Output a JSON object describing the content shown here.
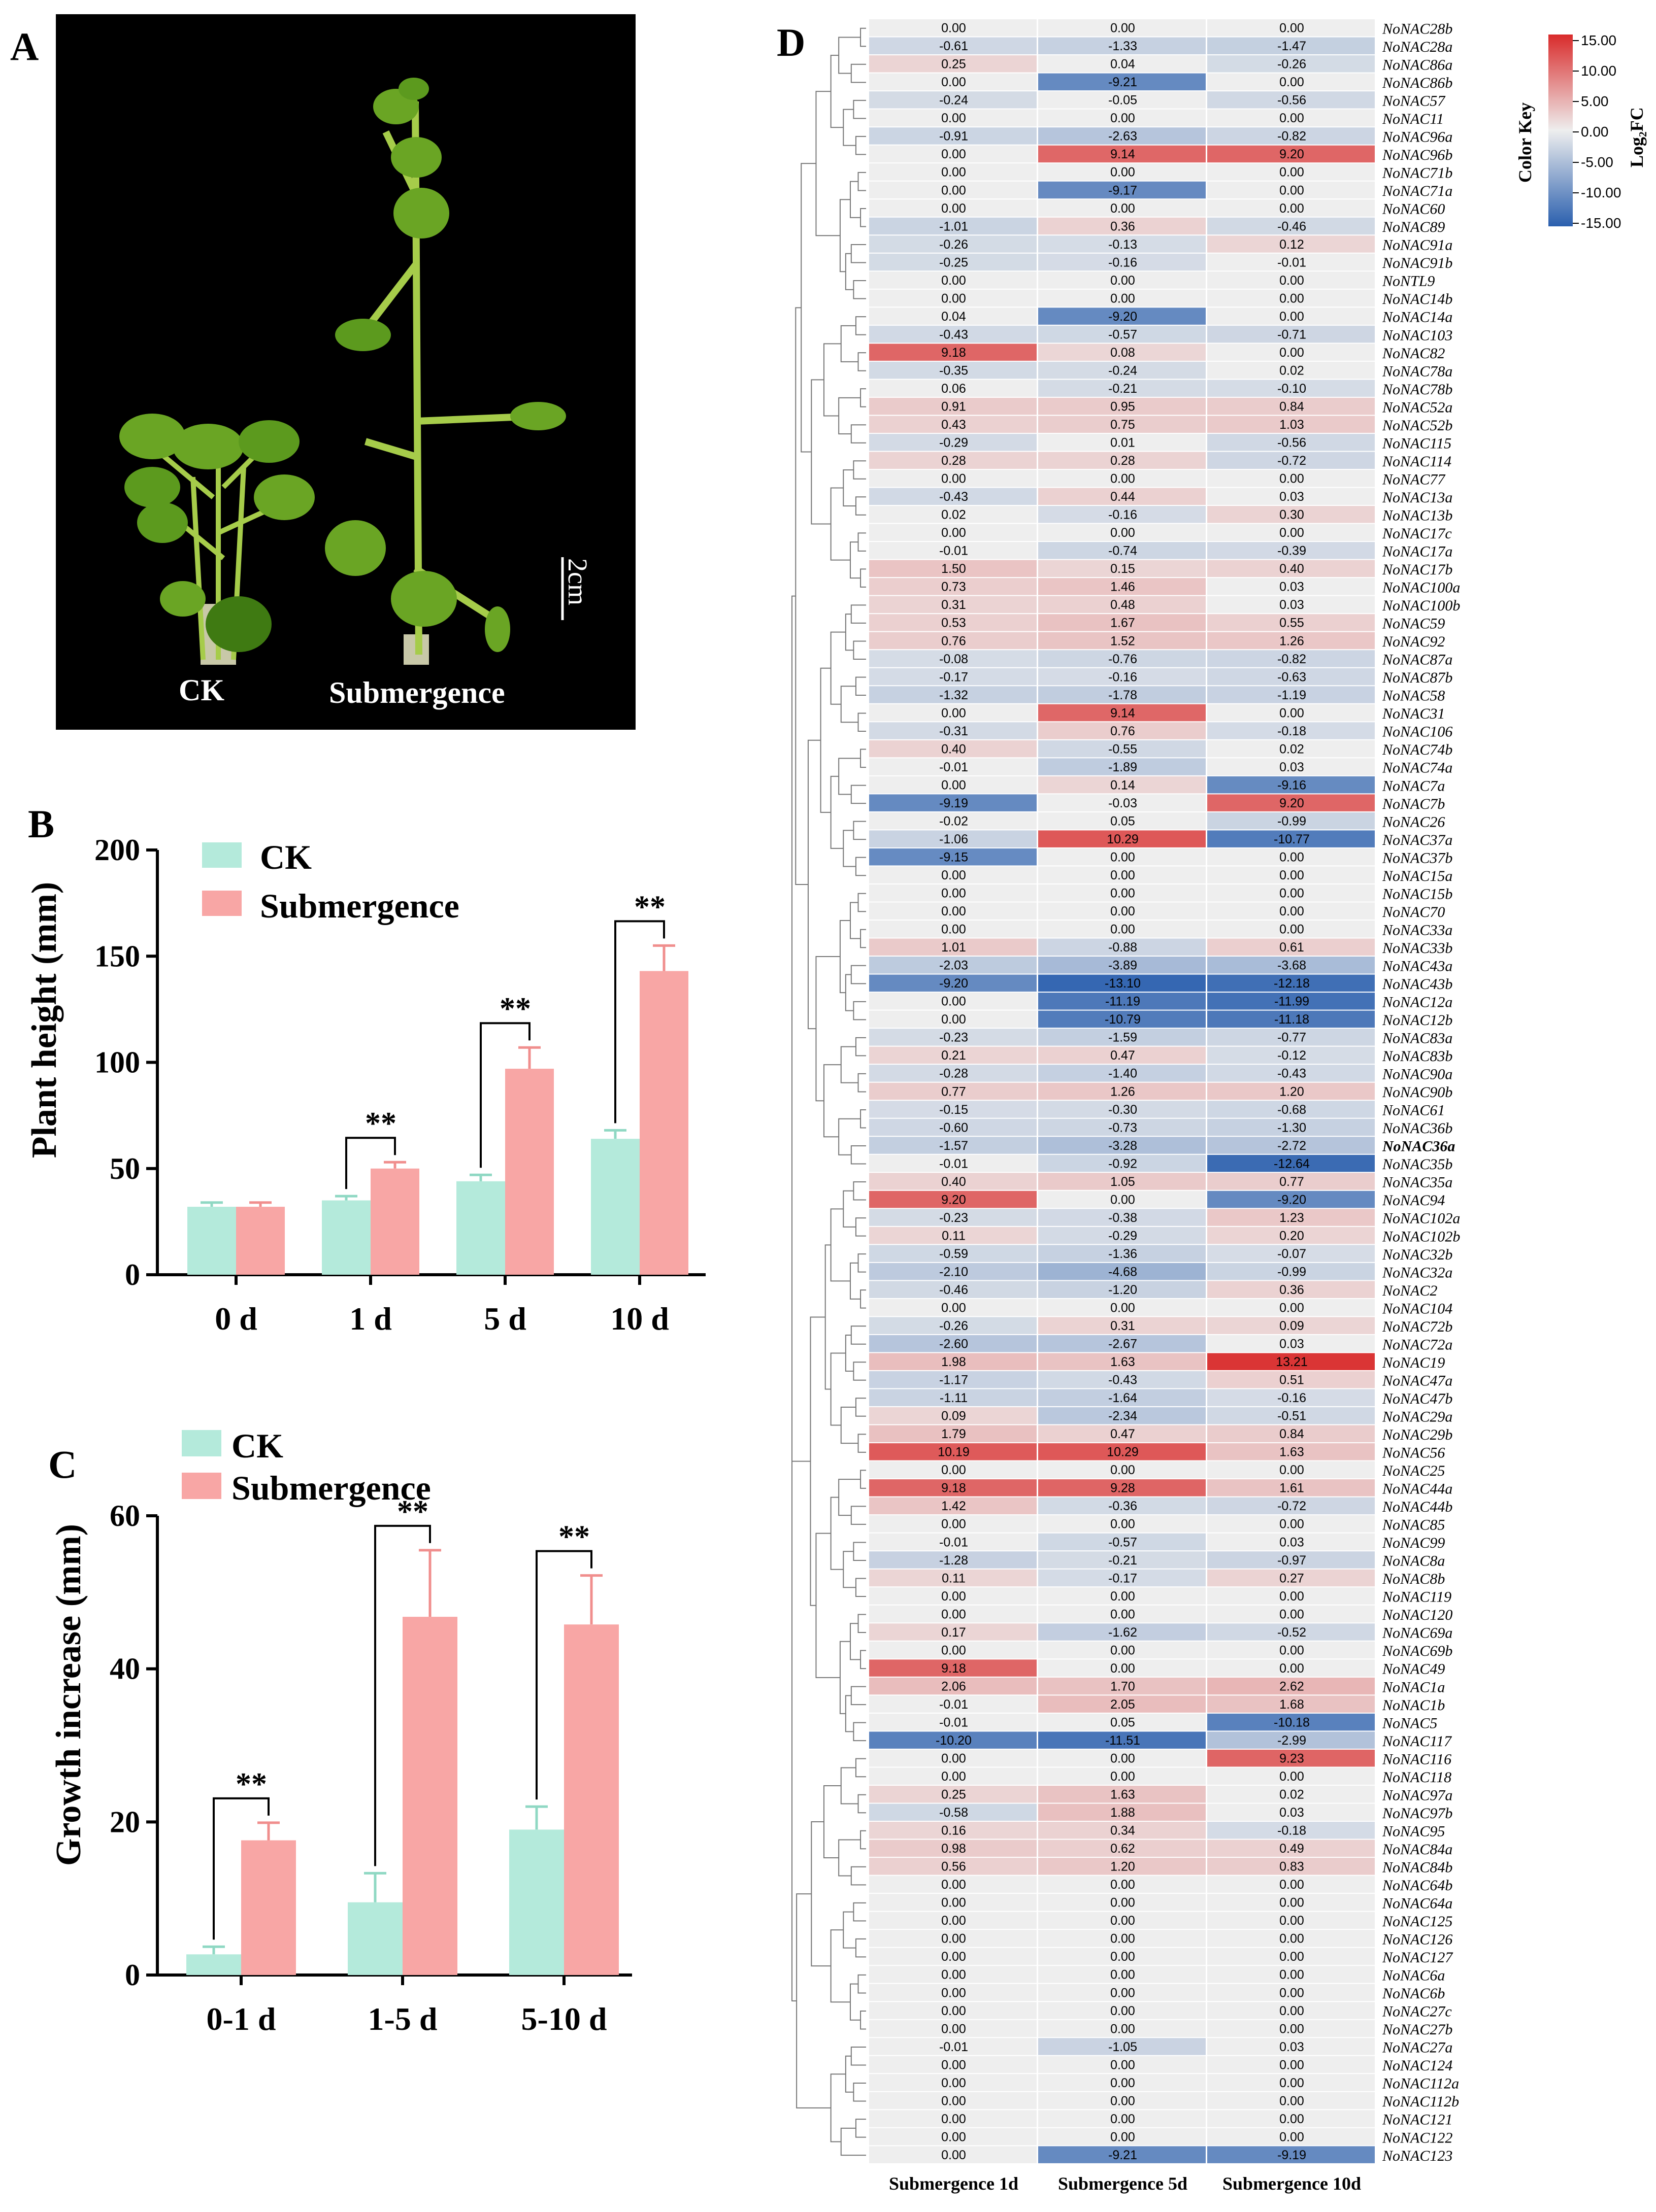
{
  "panel_letters": {
    "a": "A",
    "b": "B",
    "c": "C",
    "d": "D"
  },
  "photo": {
    "label_ck": "CK",
    "label_sub": "Submergence",
    "scale_label": "2cm",
    "colors": {
      "background": "#000000",
      "leaf": "#6aa524",
      "leaf_dark": "#3f7a12",
      "stem": "#a6cc4a"
    }
  },
  "colors": {
    "ck": "#b4eadb",
    "sub": "#f8a6a5",
    "ck_err": "#8fd8c3",
    "sub_err": "#f08e8d",
    "axis": "#000000"
  },
  "chart_data": [
    {
      "type": "bar",
      "id": "B",
      "title": "",
      "xlabel": "",
      "ylabel": "Plant height (mm)",
      "ylim": [
        0,
        200
      ],
      "yticks": [
        0,
        50,
        100,
        150,
        200
      ],
      "categories": [
        "0 d",
        "1 d",
        "5 d",
        "10 d"
      ],
      "legend": [
        "CK",
        "Submergence"
      ],
      "series": [
        {
          "name": "CK",
          "values": [
            32,
            35,
            44,
            64
          ],
          "errors": [
            2,
            2,
            3,
            4
          ]
        },
        {
          "name": "Submergence",
          "values": [
            32,
            50,
            97,
            143
          ],
          "errors": [
            2,
            3,
            10,
            12
          ]
        }
      ],
      "significance": [
        "",
        "**",
        "**",
        "**"
      ]
    },
    {
      "type": "bar",
      "id": "C",
      "title": "",
      "xlabel": "",
      "ylabel": "Growth increase (mm)",
      "ylim": [
        0,
        60
      ],
      "yticks": [
        0,
        20,
        40,
        60
      ],
      "categories": [
        "0-1 d",
        "1-5 d",
        "5-10 d"
      ],
      "legend": [
        "CK",
        "Submergence"
      ],
      "series": [
        {
          "name": "CK",
          "values": [
            2.7,
            9.5,
            19
          ],
          "errors": [
            1,
            3.8,
            3
          ]
        },
        {
          "name": "Submergence",
          "values": [
            17.6,
            46.8,
            45.8
          ],
          "errors": [
            2.3,
            8.7,
            6.4
          ]
        }
      ],
      "significance": [
        "**",
        "**",
        "**"
      ]
    },
    {
      "type": "heatmap",
      "id": "D",
      "title": "",
      "columns": [
        "Submergence 1d",
        "Submergence 5d",
        "Submergence 10d"
      ],
      "color_key": {
        "title": "Color Key",
        "label": "Log₂FC",
        "ticks": [
          "15.00",
          "10.00",
          "5.00",
          "0.00",
          "-5.00",
          "-10.00",
          "-15.00"
        ],
        "range": [
          -15,
          15
        ],
        "pos_color": "#d92b2b",
        "neg_color": "#2a5fae",
        "mid_color": "#eeeeee"
      },
      "highlight_gene": "NoNAC36a",
      "highlight_color": "#e8302d",
      "genes": [
        "NoNAC28b",
        "NoNAC28a",
        "NoNAC86a",
        "NoNAC86b",
        "NoNAC57",
        "NoNAC11",
        "NoNAC96a",
        "NoNAC96b",
        "NoNAC71b",
        "NoNAC71a",
        "NoNAC60",
        "NoNAC89",
        "NoNAC91a",
        "NoNAC91b",
        "NoNTL9",
        "NoNAC14b",
        "NoNAC14a",
        "NoNAC103",
        "NoNAC82",
        "NoNAC78a",
        "NoNAC78b",
        "NoNAC52a",
        "NoNAC52b",
        "NoNAC115",
        "NoNAC114",
        "NoNAC77",
        "NoNAC13a",
        "NoNAC13b",
        "NoNAC17c",
        "NoNAC17a",
        "NoNAC17b",
        "NoNAC100a",
        "NoNAC100b",
        "NoNAC59",
        "NoNAC92",
        "NoNAC87a",
        "NoNAC87b",
        "NoNAC58",
        "NoNAC31",
        "NoNAC106",
        "NoNAC74b",
        "NoNAC74a",
        "NoNAC7a",
        "NoNAC7b",
        "NoNAC26",
        "NoNAC37a",
        "NoNAC37b",
        "NoNAC15a",
        "NoNAC15b",
        "NoNAC70",
        "NoNAC33a",
        "NoNAC33b",
        "NoNAC43a",
        "NoNAC43b",
        "NoNAC12a",
        "NoNAC12b",
        "NoNAC83a",
        "NoNAC83b",
        "NoNAC90a",
        "NoNAC90b",
        "NoNAC61",
        "NoNAC36b",
        "NoNAC36a",
        "NoNAC35b",
        "NoNAC35a",
        "NoNAC94",
        "NoNAC102a",
        "NoNAC102b",
        "NoNAC32b",
        "NoNAC32a",
        "NoNAC2",
        "NoNAC104",
        "NoNAC72b",
        "NoNAC72a",
        "NoNAC19",
        "NoNAC47a",
        "NoNAC47b",
        "NoNAC29a",
        "NoNAC29b",
        "NoNAC56",
        "NoNAC25",
        "NoNAC44a",
        "NoNAC44b",
        "NoNAC85",
        "NoNAC99",
        "NoNAC8a",
        "NoNAC8b",
        "NoNAC119",
        "NoNAC120",
        "NoNAC69a",
        "NoNAC69b",
        "NoNAC49",
        "NoNAC1a",
        "NoNAC1b",
        "NoNAC5",
        "NoNAC117",
        "NoNAC116",
        "NoNAC118",
        "NoNAC97a",
        "NoNAC97b",
        "NoNAC95",
        "NoNAC84a",
        "NoNAC84b",
        "NoNAC64b",
        "NoNAC64a",
        "NoNAC125",
        "NoNAC126",
        "NoNAC127",
        "NoNAC6a",
        "NoNAC6b",
        "NoNAC27c",
        "NoNAC27b",
        "NoNAC27a",
        "NoNAC124",
        "NoNAC112a",
        "NoNAC112b",
        "NoNAC121",
        "NoNAC122",
        "NoNAC123"
      ],
      "values": [
        [
          "0.00",
          "0.00",
          "0.00"
        ],
        [
          "-0.61",
          "-1.33",
          "-1.47"
        ],
        [
          "0.25",
          "0.04",
          "-0.26"
        ],
        [
          "0.00",
          "-9.21",
          "0.00"
        ],
        [
          "-0.24",
          "-0.05",
          "-0.56"
        ],
        [
          "0.00",
          "0.00",
          "0.00"
        ],
        [
          "-0.91",
          "-2.63",
          "-0.82"
        ],
        [
          "0.00",
          "9.14",
          "9.20"
        ],
        [
          "0.00",
          "0.00",
          "0.00"
        ],
        [
          "0.00",
          "-9.17",
          "0.00"
        ],
        [
          "0.00",
          "0.00",
          "0.00"
        ],
        [
          "-1.01",
          "0.36",
          "-0.46"
        ],
        [
          "-0.26",
          "-0.13",
          "0.12"
        ],
        [
          "-0.25",
          "-0.16",
          "-0.01"
        ],
        [
          "0.00",
          "0.00",
          "0.00"
        ],
        [
          "0.00",
          "0.00",
          "0.00"
        ],
        [
          "0.04",
          "-9.20",
          "0.00"
        ],
        [
          "-0.43",
          "-0.57",
          "-0.71"
        ],
        [
          "9.18",
          "0.08",
          "0.00"
        ],
        [
          "-0.35",
          "-0.24",
          "0.02"
        ],
        [
          "0.06",
          "-0.21",
          "-0.10"
        ],
        [
          "0.91",
          "0.95",
          "0.84"
        ],
        [
          "0.43",
          "0.75",
          "1.03"
        ],
        [
          "-0.29",
          "0.01",
          "-0.56"
        ],
        [
          "0.28",
          "0.28",
          "-0.72"
        ],
        [
          "0.00",
          "0.00",
          "0.00"
        ],
        [
          "-0.43",
          "0.44",
          "0.03"
        ],
        [
          "0.02",
          "-0.16",
          "0.30"
        ],
        [
          "0.00",
          "0.00",
          "0.00"
        ],
        [
          "-0.01",
          "-0.74",
          "-0.39"
        ],
        [
          "1.50",
          "0.15",
          "0.40"
        ],
        [
          "0.73",
          "1.46",
          "0.03"
        ],
        [
          "0.31",
          "0.48",
          "0.03"
        ],
        [
          "0.53",
          "1.67",
          "0.55"
        ],
        [
          "0.76",
          "1.52",
          "1.26"
        ],
        [
          "-0.08",
          "-0.76",
          "-0.82"
        ],
        [
          "-0.17",
          "-0.16",
          "-0.63"
        ],
        [
          "-1.32",
          "-1.78",
          "-1.19"
        ],
        [
          "0.00",
          "9.14",
          "0.00"
        ],
        [
          "-0.31",
          "0.76",
          "-0.18"
        ],
        [
          "0.40",
          "-0.55",
          "0.02"
        ],
        [
          "-0.01",
          "-1.89",
          "0.03"
        ],
        [
          "0.00",
          "0.14",
          "-9.16"
        ],
        [
          "-9.19",
          "-0.03",
          "9.20"
        ],
        [
          "-0.02",
          "0.05",
          "-0.99"
        ],
        [
          "-1.06",
          "10.29",
          "-10.77"
        ],
        [
          "-9.15",
          "0.00",
          "0.00"
        ],
        [
          "0.00",
          "0.00",
          "0.00"
        ],
        [
          "0.00",
          "0.00",
          "0.00"
        ],
        [
          "0.00",
          "0.00",
          "0.00"
        ],
        [
          "0.00",
          "0.00",
          "0.00"
        ],
        [
          "1.01",
          "-0.88",
          "0.61"
        ],
        [
          "-2.03",
          "-3.89",
          "-3.68"
        ],
        [
          "-9.20",
          "-13.10",
          "-12.18"
        ],
        [
          "0.00",
          "-11.19",
          "-11.99"
        ],
        [
          "0.00",
          "-10.79",
          "-11.18"
        ],
        [
          "-0.23",
          "-1.59",
          "-0.77"
        ],
        [
          "0.21",
          "0.47",
          "-0.12"
        ],
        [
          "-0.28",
          "-1.40",
          "-0.43"
        ],
        [
          "0.77",
          "1.26",
          "1.20"
        ],
        [
          "-0.15",
          "-0.30",
          "-0.68"
        ],
        [
          "-0.60",
          "-0.73",
          "-1.30"
        ],
        [
          "-1.57",
          "-3.28",
          "-2.72"
        ],
        [
          "-0.01",
          "-0.92",
          "-12.64"
        ],
        [
          "0.40",
          "1.05",
          "0.77"
        ],
        [
          "9.20",
          "0.00",
          "-9.20"
        ],
        [
          "-0.23",
          "-0.38",
          "1.23"
        ],
        [
          "0.11",
          "-0.29",
          "0.20"
        ],
        [
          "-0.59",
          "-1.36",
          "-0.07"
        ],
        [
          "-2.10",
          "-4.68",
          "-0.99"
        ],
        [
          "-0.46",
          "-1.20",
          "0.36"
        ],
        [
          "0.00",
          "0.00",
          "0.00"
        ],
        [
          "-0.26",
          "0.31",
          "0.09"
        ],
        [
          "-2.60",
          "-2.67",
          "0.03"
        ],
        [
          "1.98",
          "1.63",
          "13.21"
        ],
        [
          "-1.17",
          "-0.43",
          "0.51"
        ],
        [
          "-1.11",
          "-1.64",
          "-0.16"
        ],
        [
          "0.09",
          "-2.34",
          "-0.51"
        ],
        [
          "1.79",
          "0.47",
          "0.84"
        ],
        [
          "10.19",
          "10.29",
          "1.63"
        ],
        [
          "0.00",
          "0.00",
          "0.00"
        ],
        [
          "9.18",
          "9.28",
          "1.61"
        ],
        [
          "1.42",
          "-0.36",
          "-0.72"
        ],
        [
          "0.00",
          "0.00",
          "0.00"
        ],
        [
          "-0.01",
          "-0.57",
          "0.03"
        ],
        [
          "-1.28",
          "-0.21",
          "-0.97"
        ],
        [
          "0.11",
          "-0.17",
          "0.27"
        ],
        [
          "0.00",
          "0.00",
          "0.00"
        ],
        [
          "0.00",
          "0.00",
          "0.00"
        ],
        [
          "0.17",
          "-1.62",
          "-0.52"
        ],
        [
          "0.00",
          "0.00",
          "0.00"
        ],
        [
          "9.18",
          "0.00",
          "0.00"
        ],
        [
          "2.06",
          "1.70",
          "2.62"
        ],
        [
          "-0.01",
          "2.05",
          "1.68"
        ],
        [
          "-0.01",
          "0.05",
          "-10.18"
        ],
        [
          "-10.20",
          "-11.51",
          "-2.99"
        ],
        [
          "0.00",
          "0.00",
          "9.23"
        ],
        [
          "0.00",
          "0.00",
          "0.00"
        ],
        [
          "0.25",
          "1.63",
          "0.02"
        ],
        [
          "-0.58",
          "1.88",
          "0.03"
        ],
        [
          "0.16",
          "0.34",
          "-0.18"
        ],
        [
          "0.98",
          "0.62",
          "0.49"
        ],
        [
          "0.56",
          "1.20",
          "0.83"
        ],
        [
          "0.00",
          "0.00",
          "0.00"
        ],
        [
          "0.00",
          "0.00",
          "0.00"
        ],
        [
          "0.00",
          "0.00",
          "0.00"
        ],
        [
          "0.00",
          "0.00",
          "0.00"
        ],
        [
          "0.00",
          "0.00",
          "0.00"
        ],
        [
          "0.00",
          "0.00",
          "0.00"
        ],
        [
          "0.00",
          "0.00",
          "0.00"
        ],
        [
          "0.00",
          "0.00",
          "0.00"
        ],
        [
          "0.00",
          "0.00",
          "0.00"
        ],
        [
          "-0.01",
          "-1.05",
          "0.03"
        ],
        [
          "0.00",
          "0.00",
          "0.00"
        ],
        [
          "0.00",
          "0.00",
          "0.00"
        ],
        [
          "0.00",
          "0.00",
          "0.00"
        ],
        [
          "0.00",
          "0.00",
          "0.00"
        ],
        [
          "0.00",
          "0.00",
          "0.00"
        ],
        [
          "0.00",
          "-9.21",
          "-9.19"
        ]
      ]
    }
  ]
}
